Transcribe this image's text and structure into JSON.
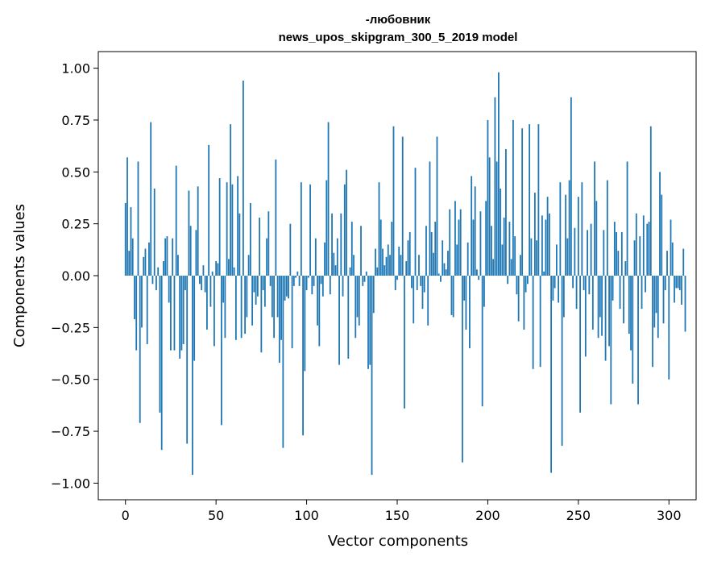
{
  "chart_data": {
    "type": "bar",
    "title_line1": "-любовник",
    "title_line2": "news_upos_skipgram_300_5_2019 model",
    "xlabel": "Vector components",
    "ylabel": "Components values",
    "xlim": [
      -15,
      315
    ],
    "ylim": [
      -1.08,
      1.08
    ],
    "xticks": [
      0,
      50,
      100,
      150,
      200,
      250,
      300
    ],
    "xtick_labels": [
      "0",
      "50",
      "100",
      "150",
      "200",
      "250",
      "300"
    ],
    "yticks": [
      1.0,
      0.75,
      0.5,
      0.25,
      0.0,
      -0.25,
      -0.5,
      -0.75,
      -1.0
    ],
    "ytick_labels": [
      "1.00",
      "0.75",
      "0.50",
      "0.25",
      "0.00",
      "−0.25",
      "−0.50",
      "−0.75",
      "−1.00"
    ],
    "bar_color": "#1f77b4",
    "values": [
      0.35,
      0.57,
      0.12,
      0.33,
      0.18,
      -0.21,
      -0.36,
      0.55,
      -0.71,
      -0.25,
      0.09,
      0.13,
      -0.33,
      0.16,
      0.74,
      -0.04,
      0.42,
      -0.07,
      0.04,
      -0.66,
      -0.84,
      0.07,
      0.18,
      0.19,
      -0.13,
      -0.36,
      0.18,
      -0.36,
      0.53,
      0.1,
      -0.4,
      -0.36,
      -0.33,
      -0.07,
      -0.81,
      0.41,
      0.24,
      -0.96,
      -0.41,
      0.22,
      0.43,
      -0.04,
      -0.07,
      0.05,
      -0.08,
      -0.26,
      0.63,
      -0.15,
      0.02,
      -0.34,
      0.07,
      0.06,
      0.47,
      -0.72,
      -0.13,
      -0.3,
      0.45,
      0.08,
      0.73,
      0.44,
      0.04,
      -0.31,
      0.48,
      0.3,
      -0.3,
      0.94,
      -0.28,
      -0.2,
      0.1,
      0.35,
      -0.24,
      -0.08,
      -0.14,
      -0.1,
      0.28,
      -0.37,
      -0.07,
      -0.15,
      0.18,
      0.31,
      -0.05,
      -0.2,
      -0.3,
      0.56,
      -0.2,
      -0.42,
      -0.31,
      -0.83,
      -0.12,
      -0.1,
      -0.11,
      0.25,
      -0.35,
      -0.05,
      -0.01,
      0.02,
      -0.05,
      0.45,
      -0.77,
      -0.46,
      -0.07,
      -0.01,
      0.44,
      -0.09,
      -0.05,
      0.18,
      -0.24,
      -0.34,
      -0.04,
      -0.1,
      0.16,
      0.46,
      0.74,
      -0.09,
      0.3,
      0.11,
      0.05,
      0.18,
      -0.43,
      0.3,
      -0.1,
      0.44,
      0.51,
      -0.4,
      0.04,
      0.26,
      0.1,
      -0.3,
      -0.2,
      -0.24,
      0.24,
      -0.05,
      -0.03,
      0.02,
      -0.45,
      -0.43,
      -0.96,
      -0.18,
      0.13,
      0.04,
      0.45,
      0.27,
      0.13,
      0.05,
      0.09,
      0.15,
      0.1,
      0.26,
      0.72,
      -0.07,
      -0.02,
      0.14,
      0.1,
      0.67,
      -0.64,
      0.07,
      0.17,
      0.21,
      -0.06,
      -0.23,
      0.52,
      -0.07,
      0.1,
      -0.05,
      -0.16,
      -0.08,
      0.24,
      -0.24,
      0.55,
      0.21,
      0.11,
      0.26,
      0.67,
      0.01,
      -0.03,
      0.17,
      0.06,
      0.03,
      0.12,
      0.32,
      -0.19,
      -0.2,
      0.36,
      0.15,
      0.27,
      0.32,
      -0.9,
      -0.12,
      -0.26,
      0.16,
      -0.35,
      0.48,
      0.27,
      0.43,
      0.03,
      -0.02,
      0.31,
      -0.63,
      -0.15,
      0.36,
      0.75,
      0.57,
      0.24,
      0.08,
      0.86,
      0.55,
      0.98,
      0.42,
      0.15,
      0.28,
      0.61,
      -0.04,
      0.26,
      0.08,
      0.75,
      0.19,
      -0.09,
      -0.22,
      0.1,
      0.71,
      -0.26,
      -0.08,
      -0.04,
      0.73,
      0.18,
      -0.45,
      0.4,
      0.17,
      0.73,
      -0.44,
      0.29,
      0.02,
      0.27,
      0.38,
      0.3,
      -0.95,
      -0.12,
      -0.06,
      0.15,
      -0.13,
      0.45,
      -0.82,
      -0.2,
      0.39,
      0.18,
      0.46,
      0.86,
      -0.06,
      0.23,
      -0.16,
      0.38,
      -0.66,
      0.45,
      -0.07,
      -0.39,
      0.22,
      -0.09,
      0.25,
      -0.26,
      0.55,
      0.36,
      -0.3,
      -0.2,
      -0.29,
      0.22,
      -0.41,
      0.46,
      -0.34,
      -0.62,
      -0.12,
      0.26,
      0.21,
      0.12,
      -0.16,
      0.21,
      -0.23,
      0.07,
      0.55,
      -0.28,
      -0.36,
      -0.52,
      0.17,
      0.3,
      -0.62,
      0.19,
      -0.16,
      0.29,
      -0.08,
      0.25,
      0.26,
      0.72,
      -0.44,
      -0.25,
      -0.18,
      -0.3,
      0.5,
      0.39,
      -0.23,
      -0.07,
      0.12,
      -0.5,
      0.27,
      0.16,
      -0.13,
      -0.06,
      -0.06,
      -0.07,
      -0.14,
      0.13,
      -0.27
    ]
  }
}
